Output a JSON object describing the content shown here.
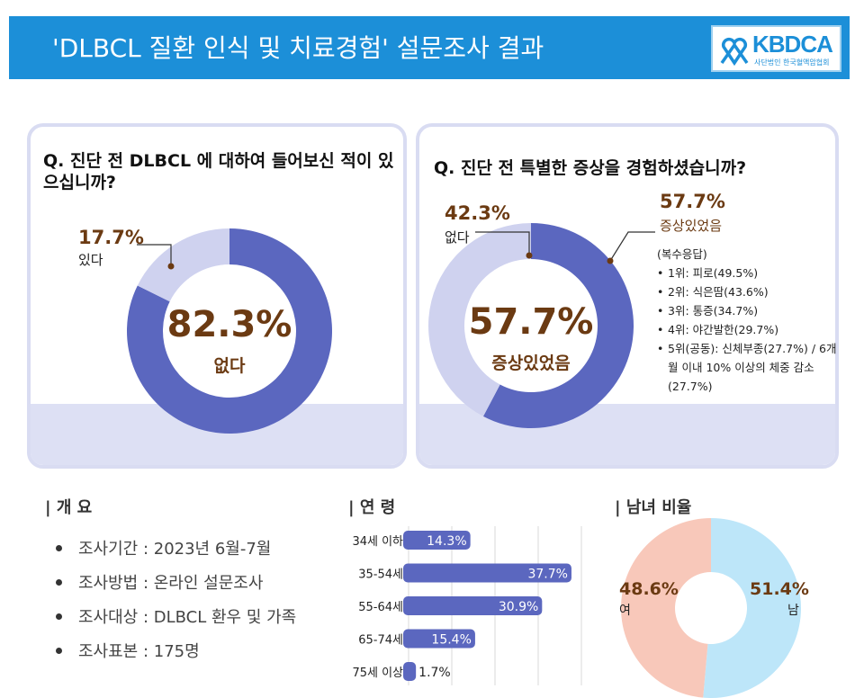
{
  "header": {
    "title": "'DLBCL 질환 인식 및 치료경험' 설문조사 결과",
    "logo_text": "KBDCA",
    "logo_sub": "사단법인 한국혈액암협회"
  },
  "panel_left": {
    "question": "Q. 진단 전 DLBCL 에 대하여 들어보신 적이 있으십니까?",
    "center_value": "82.3%",
    "center_label": "없다",
    "side_value": "17.7%",
    "side_label": "있다"
  },
  "panel_right": {
    "question": "Q. 진단 전 특별한 증상을 경험하셨습니까?",
    "center_value": "57.7%",
    "center_label": "증상있었음",
    "left_value": "42.3%",
    "left_label": "없다",
    "right_value": "57.7%",
    "right_label": "증상있었음",
    "note": "(복수응답)",
    "symptoms": [
      "1위: 피로(49.5%)",
      "2위: 식은땀(43.6%)",
      "3위: 통증(34.7%)",
      "4위: 야간발한(29.7%)",
      "5위(공동): 신체부종(27.7%) / 6개월 이내 10% 이상의 체중 감소(27.7%)"
    ]
  },
  "overview": {
    "title": "| 개 요",
    "items": [
      "조사기간 : 2023년 6월-7월",
      "조사방법 : 온라인 설문조사",
      "조사대상 : DLBCL 환우 및 가족",
      "조사표본 : 175명"
    ]
  },
  "age": {
    "title": "| 연 령"
  },
  "gender": {
    "title": "| 남녀 비율",
    "female_value": "48.6%",
    "female_label": "여",
    "male_value": "51.4%",
    "male_label": "남"
  },
  "colors": {
    "dark": "#5b67bf",
    "light": "#cfd2ef",
    "pink": "#f8c8ba",
    "blue": "#bde6f9",
    "header": "#1c8fd8",
    "brown": "#6b3a12"
  },
  "chart_data": [
    {
      "type": "pie",
      "title": "Q. 진단 전 DLBCL 에 대하여 들어보신 적이 있으십니까?",
      "labels": [
        "없다",
        "있다"
      ],
      "values": [
        82.3,
        17.7
      ]
    },
    {
      "type": "pie",
      "title": "Q. 진단 전 특별한 증상을 경험하셨습니까?",
      "labels": [
        "증상있었음",
        "없다"
      ],
      "values": [
        57.7,
        42.3
      ]
    },
    {
      "type": "bar",
      "orientation": "horizontal",
      "title": "| 연 령",
      "categories": [
        "34세 이하",
        "35-54세",
        "55-64세",
        "65-74세",
        "75세 이상"
      ],
      "values": [
        14.3,
        37.7,
        30.9,
        15.4,
        1.7
      ],
      "value_labels": [
        "14.3%",
        "37.7%",
        "30.9%",
        "15.4%",
        "1.7%"
      ],
      "xlim": [
        0,
        40
      ],
      "grid": true
    },
    {
      "type": "pie",
      "title": "| 남녀 비율",
      "labels": [
        "남",
        "여"
      ],
      "values": [
        51.4,
        48.6
      ]
    }
  ]
}
